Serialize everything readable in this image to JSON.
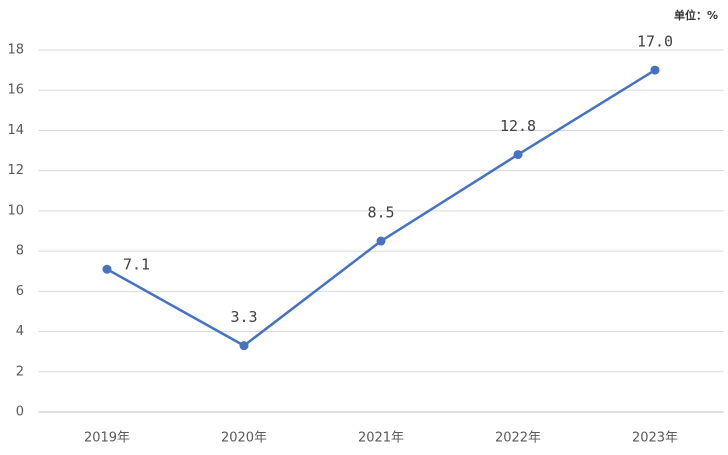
{
  "chart_data": {
    "type": "line",
    "unit_label": "单位：%",
    "categories": [
      "2019年",
      "2020年",
      "2021年",
      "2022年",
      "2023年"
    ],
    "values": [
      7.1,
      3.3,
      8.5,
      12.8,
      17.0
    ],
    "value_labels": [
      "7.1",
      "3.3",
      "8.5",
      "12.8",
      "17.0"
    ],
    "color": "#4472c4",
    "ylim": [
      0,
      18
    ],
    "yticks": [
      0,
      2,
      4,
      6,
      8,
      10,
      12,
      14,
      16,
      18
    ],
    "grid": true
  }
}
